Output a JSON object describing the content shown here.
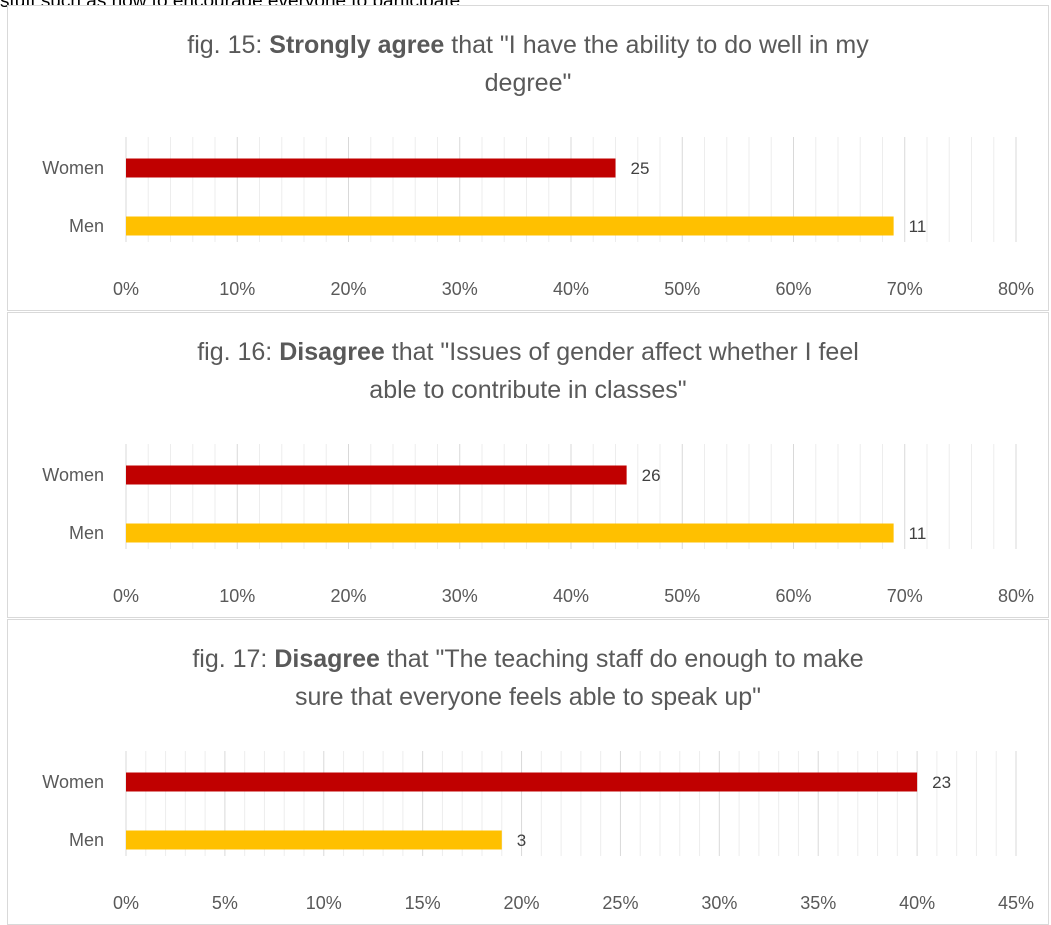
{
  "page": {
    "top_text": "stuff such as how to encourage everyone to participate"
  },
  "colors": {
    "women": "#c00000",
    "men": "#ffc000",
    "grid": "#e6e6e6"
  },
  "chart_data": [
    {
      "type": "bar",
      "orientation": "horizontal",
      "title_prefix": "fig. 15: ",
      "title_bold": "Strongly agree",
      "title_rest": " that \"I have the ability to do well in my",
      "title_line2": "degree\"",
      "categories": [
        "Women",
        "Men"
      ],
      "values_pct": [
        44,
        69
      ],
      "data_labels": [
        "25",
        "11"
      ],
      "xlim": [
        0,
        80
      ],
      "ticks": [
        0,
        10,
        20,
        30,
        40,
        50,
        60,
        70,
        80
      ],
      "tick_labels": [
        "0%",
        "10%",
        "20%",
        "30%",
        "40%",
        "50%",
        "60%",
        "70%",
        "80%"
      ],
      "grid": true
    },
    {
      "type": "bar",
      "orientation": "horizontal",
      "title_prefix": "fig. 16: ",
      "title_bold": "Disagree",
      "title_rest": " that \"Issues of gender affect whether I feel",
      "title_line2": "able to contribute in classes\"",
      "categories": [
        "Women",
        "Men"
      ],
      "values_pct": [
        45,
        69
      ],
      "data_labels": [
        "26",
        "11"
      ],
      "xlim": [
        0,
        80
      ],
      "ticks": [
        0,
        10,
        20,
        30,
        40,
        50,
        60,
        70,
        80
      ],
      "tick_labels": [
        "0%",
        "10%",
        "20%",
        "30%",
        "40%",
        "50%",
        "60%",
        "70%",
        "80%"
      ],
      "grid": true
    },
    {
      "type": "bar",
      "orientation": "horizontal",
      "title_prefix": "fig. 17: ",
      "title_bold": "Disagree",
      "title_rest": " that \"The teaching staff do enough to make",
      "title_line2": "sure that everyone feels able to speak up\"",
      "categories": [
        "Women",
        "Men"
      ],
      "values_pct": [
        40,
        19
      ],
      "data_labels": [
        "23",
        "3"
      ],
      "xlim": [
        0,
        45
      ],
      "ticks": [
        0,
        5,
        10,
        15,
        20,
        25,
        30,
        35,
        40,
        45
      ],
      "tick_labels": [
        "0%",
        "5%",
        "10%",
        "15%",
        "20%",
        "25%",
        "30%",
        "35%",
        "40%",
        "45%"
      ],
      "grid": true
    }
  ]
}
